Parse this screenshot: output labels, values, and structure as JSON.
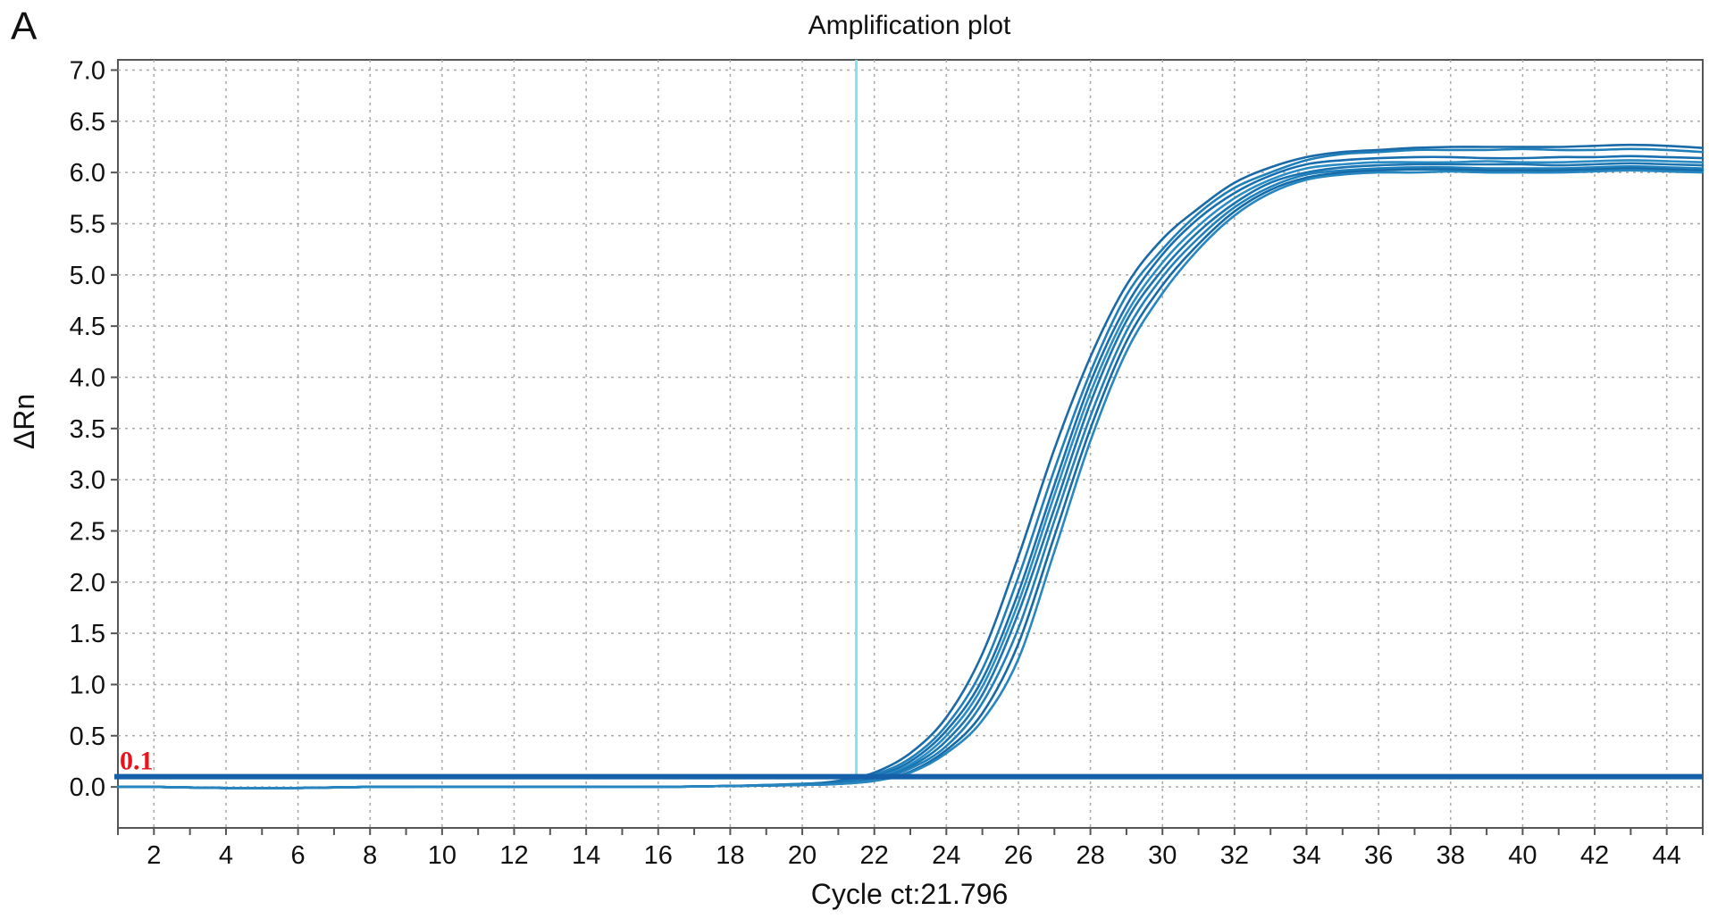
{
  "panel_label": "A",
  "chart_data": {
    "type": "line",
    "title": "Amplification plot",
    "xlabel": "Cycle ct:21.796",
    "ylabel": "ΔRn",
    "xlim": [
      1,
      45
    ],
    "ylim": [
      -0.4,
      7.1
    ],
    "xticks": [
      2,
      4,
      6,
      8,
      10,
      12,
      14,
      16,
      18,
      20,
      22,
      24,
      26,
      28,
      30,
      32,
      34,
      36,
      38,
      40,
      42,
      44
    ],
    "yticks": [
      "0.0",
      "0.5",
      "1.0",
      "1.5",
      "2.0",
      "2.5",
      "3.0",
      "3.5",
      "4.0",
      "4.5",
      "5.0",
      "5.5",
      "6.0",
      "6.5",
      "7.0"
    ],
    "grid": true,
    "threshold": {
      "value": 0.1,
      "label": "0.1",
      "color": "#1560a8",
      "label_color": "#e8141b"
    },
    "ct_marker": {
      "x": 21.5,
      "color": "#7fe6ee"
    },
    "curve_color": "#1a78b4",
    "curve_colors": [
      "#1a6aa8",
      "#1f7fb8",
      "#176fb0",
      "#2a8cc4",
      "#1b74b0",
      "#2080bc",
      "#166aa6",
      "#2686c0"
    ],
    "series": [
      {
        "x": [
          1,
          2,
          4,
          6,
          8,
          10,
          12,
          14,
          16,
          18,
          20,
          21,
          22,
          23,
          24,
          25,
          26,
          27,
          28,
          29,
          30,
          31,
          32,
          33,
          34,
          35,
          36,
          37,
          38,
          39,
          40,
          41,
          42,
          43,
          44,
          45
        ],
        "values": [
          0.0,
          0.0,
          -0.01,
          -0.01,
          0.0,
          0.0,
          0.0,
          0.0,
          0.0,
          0.01,
          0.03,
          0.06,
          0.14,
          0.33,
          0.68,
          1.3,
          2.25,
          3.3,
          4.2,
          4.9,
          5.35,
          5.65,
          5.9,
          6.05,
          6.15,
          6.2,
          6.22,
          6.24,
          6.25,
          6.25,
          6.25,
          6.25,
          6.26,
          6.27,
          6.26,
          6.24
        ]
      },
      {
        "x": [
          1,
          2,
          4,
          6,
          8,
          10,
          12,
          14,
          16,
          18,
          20,
          21,
          22,
          23,
          24,
          25,
          26,
          27,
          28,
          29,
          30,
          31,
          32,
          33,
          34,
          35,
          36,
          37,
          38,
          39,
          40,
          41,
          42,
          43,
          44,
          45
        ],
        "values": [
          0.0,
          0.0,
          -0.01,
          -0.01,
          0.0,
          0.0,
          0.0,
          0.0,
          0.0,
          0.01,
          0.03,
          0.05,
          0.12,
          0.28,
          0.6,
          1.15,
          2.05,
          3.1,
          4.05,
          4.8,
          5.25,
          5.6,
          5.85,
          6.0,
          6.12,
          6.18,
          6.2,
          6.22,
          6.22,
          6.22,
          6.23,
          6.22,
          6.22,
          6.23,
          6.22,
          6.2
        ]
      },
      {
        "x": [
          1,
          2,
          4,
          6,
          8,
          10,
          12,
          14,
          16,
          18,
          20,
          21,
          22,
          23,
          24,
          25,
          26,
          27,
          28,
          29,
          30,
          31,
          32,
          33,
          34,
          35,
          36,
          37,
          38,
          39,
          40,
          41,
          42,
          43,
          44,
          45
        ],
        "values": [
          0.0,
          0.0,
          -0.01,
          -0.01,
          0.0,
          0.0,
          0.0,
          0.0,
          0.0,
          0.01,
          0.02,
          0.05,
          0.1,
          0.25,
          0.55,
          1.05,
          1.9,
          2.95,
          3.95,
          4.7,
          5.2,
          5.55,
          5.8,
          5.97,
          6.08,
          6.12,
          6.14,
          6.15,
          6.15,
          6.14,
          6.14,
          6.15,
          6.15,
          6.16,
          6.15,
          6.14
        ]
      },
      {
        "x": [
          1,
          2,
          4,
          6,
          8,
          10,
          12,
          14,
          16,
          18,
          20,
          21,
          22,
          23,
          24,
          25,
          26,
          27,
          28,
          29,
          30,
          31,
          32,
          33,
          34,
          35,
          36,
          37,
          38,
          39,
          40,
          41,
          42,
          43,
          44,
          45
        ],
        "values": [
          0.0,
          0.0,
          -0.01,
          -0.01,
          0.0,
          0.0,
          0.0,
          0.0,
          0.0,
          0.01,
          0.02,
          0.04,
          0.09,
          0.22,
          0.5,
          0.98,
          1.8,
          2.85,
          3.85,
          4.62,
          5.12,
          5.48,
          5.75,
          5.93,
          6.04,
          6.08,
          6.1,
          6.1,
          6.1,
          6.11,
          6.1,
          6.1,
          6.11,
          6.12,
          6.11,
          6.1
        ]
      },
      {
        "x": [
          1,
          2,
          4,
          6,
          8,
          10,
          12,
          14,
          16,
          18,
          20,
          21,
          22,
          23,
          24,
          25,
          26,
          27,
          28,
          29,
          30,
          31,
          32,
          33,
          34,
          35,
          36,
          37,
          38,
          39,
          40,
          41,
          42,
          43,
          44,
          45
        ],
        "values": [
          0.0,
          0.0,
          -0.01,
          -0.01,
          0.0,
          0.0,
          0.0,
          0.0,
          0.0,
          0.01,
          0.02,
          0.04,
          0.08,
          0.2,
          0.45,
          0.9,
          1.7,
          2.72,
          3.75,
          4.55,
          5.05,
          5.42,
          5.7,
          5.9,
          6.0,
          6.05,
          6.07,
          6.08,
          6.08,
          6.08,
          6.08,
          6.07,
          6.08,
          6.09,
          6.08,
          6.07
        ]
      },
      {
        "x": [
          1,
          2,
          4,
          6,
          8,
          10,
          12,
          14,
          16,
          18,
          20,
          21,
          22,
          23,
          24,
          25,
          26,
          27,
          28,
          29,
          30,
          31,
          32,
          33,
          34,
          35,
          36,
          37,
          38,
          39,
          40,
          41,
          42,
          43,
          44,
          45
        ],
        "values": [
          0.0,
          0.0,
          -0.01,
          -0.01,
          0.0,
          0.0,
          0.0,
          0.0,
          0.0,
          0.01,
          0.02,
          0.03,
          0.07,
          0.18,
          0.4,
          0.82,
          1.55,
          2.6,
          3.62,
          4.45,
          4.98,
          5.36,
          5.66,
          5.86,
          5.98,
          6.02,
          6.04,
          6.05,
          6.05,
          6.04,
          6.04,
          6.04,
          6.05,
          6.06,
          6.05,
          6.04
        ]
      },
      {
        "x": [
          1,
          2,
          4,
          6,
          8,
          10,
          12,
          14,
          16,
          18,
          20,
          21,
          22,
          23,
          24,
          25,
          26,
          27,
          28,
          29,
          30,
          31,
          32,
          33,
          34,
          35,
          36,
          37,
          38,
          39,
          40,
          41,
          42,
          43,
          44,
          45
        ],
        "values": [
          0.0,
          0.0,
          -0.01,
          -0.01,
          0.0,
          0.0,
          0.0,
          0.0,
          0.0,
          0.01,
          0.02,
          0.03,
          0.06,
          0.15,
          0.36,
          0.72,
          1.4,
          2.45,
          3.5,
          4.35,
          4.9,
          5.3,
          5.62,
          5.83,
          5.95,
          6.0,
          6.02,
          6.03,
          6.03,
          6.02,
          6.02,
          6.02,
          6.03,
          6.04,
          6.03,
          6.02
        ]
      },
      {
        "x": [
          1,
          2,
          4,
          6,
          8,
          10,
          12,
          14,
          16,
          18,
          20,
          21,
          22,
          23,
          24,
          25,
          26,
          27,
          28,
          29,
          30,
          31,
          32,
          33,
          34,
          35,
          36,
          37,
          38,
          39,
          40,
          41,
          42,
          43,
          44,
          45
        ],
        "values": [
          0.0,
          0.0,
          -0.01,
          -0.01,
          0.0,
          0.0,
          0.0,
          0.0,
          0.0,
          0.01,
          0.02,
          0.03,
          0.06,
          0.14,
          0.33,
          0.65,
          1.25,
          2.3,
          3.38,
          4.25,
          4.82,
          5.25,
          5.58,
          5.8,
          5.93,
          5.98,
          6.0,
          6.0,
          6.01,
          6.0,
          6.0,
          6.0,
          6.01,
          6.02,
          6.01,
          6.0
        ]
      }
    ]
  }
}
